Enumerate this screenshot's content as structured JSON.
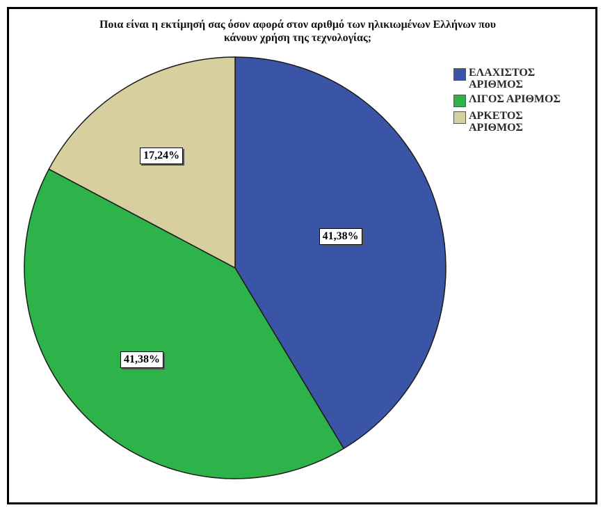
{
  "chart_data": {
    "type": "pie",
    "title_lines": [
      "Ποια είναι η εκτίμησή σας όσον αφορά στον αριθμό των ηλικιωμένων Ελλήνων που",
      "κάνουν χρήση της τεχνολογίας;"
    ],
    "slices": [
      {
        "name": "ΕΛΑΧΙΣΤΟΣ ΑΡΙΘΜΟΣ",
        "value": 41.38,
        "label": "41,38%",
        "color": "#3a55a6"
      },
      {
        "name": "ΛΙΓΟΣ ΑΡΙΘΜΟΣ",
        "value": 41.38,
        "label": "41,38%",
        "color": "#2db34a"
      },
      {
        "name": "ΑΡΚΕΤΟΣ ΑΡΙΘΜΟΣ",
        "value": 17.24,
        "label": "17,24%",
        "color": "#d8cf9e"
      }
    ],
    "start_angle_deg": 0,
    "direction": "clockwise",
    "legend_position": "top-right"
  }
}
